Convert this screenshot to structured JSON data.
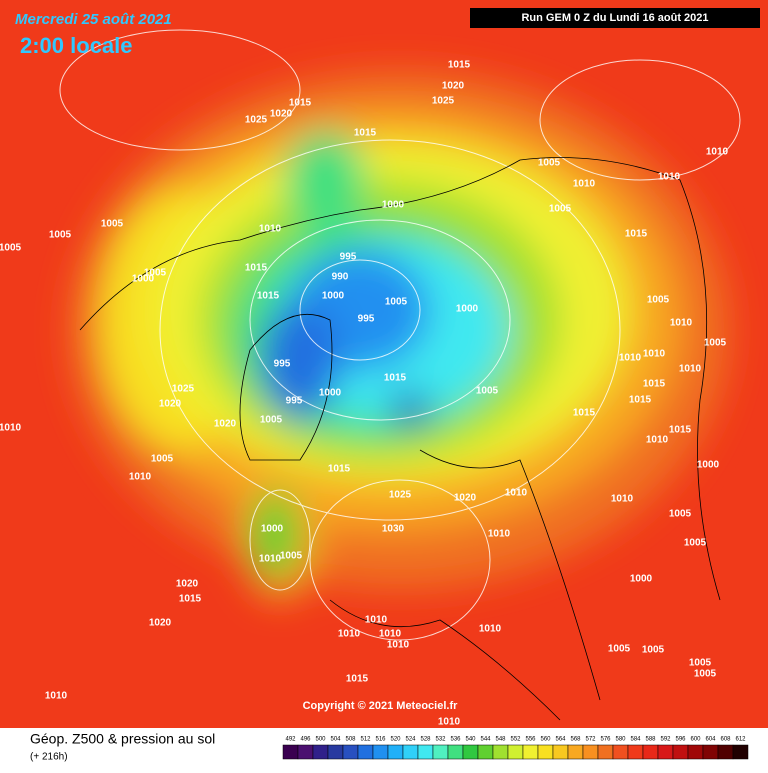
{
  "header": {
    "date": "Mercredi 25 août 2021",
    "time": "2:00 locale",
    "run": "Run GEM 0 Z du Lundi 16 août 2021"
  },
  "map": {
    "pressure_labels": [
      1015,
      1020,
      1025,
      1015,
      1020,
      1025,
      1015,
      1010,
      1005,
      1010,
      1010,
      1005,
      1000,
      1005,
      1005,
      1010,
      1015,
      995,
      990,
      1015,
      1005,
      1000,
      1000,
      1015,
      1005,
      1000,
      1005,
      1010,
      995,
      1005,
      1010,
      1010,
      995,
      1010,
      1015,
      1015,
      1005,
      1025,
      1020,
      995,
      1000,
      1015,
      1015,
      1005,
      1020,
      1010,
      1010,
      1015,
      1005,
      1000,
      1015,
      1010,
      1025,
      1020,
      1010,
      1010,
      1005,
      1000,
      1030,
      1010,
      1005,
      1010,
      1005,
      1000,
      1020,
      1015,
      1020,
      1010,
      1010,
      1010,
      1010,
      1010,
      1005,
      1005,
      1005,
      1005,
      1015,
      1010,
      1010,
      1005
    ],
    "copyright": "Copyright © 2021 Meteociel.fr"
  },
  "footer": {
    "title": "Géop. Z500 & pression au sol",
    "lead": "(+ 216h)",
    "scale": [
      492,
      496,
      500,
      504,
      508,
      512,
      516,
      520,
      524,
      528,
      532,
      536,
      540,
      544,
      548,
      552,
      556,
      560,
      564,
      568,
      572,
      576,
      580,
      584,
      588,
      592,
      596,
      600,
      604,
      608,
      612
    ],
    "colors": [
      "#3a0050",
      "#4b1070",
      "#30208a",
      "#283aa0",
      "#2850c0",
      "#2070e0",
      "#2090f0",
      "#20b0f8",
      "#30d0f8",
      "#40e8f0",
      "#50f0c0",
      "#40e080",
      "#30c840",
      "#60d030",
      "#a0e030",
      "#d0f030",
      "#f0f030",
      "#f8e020",
      "#f8c820",
      "#f8a820",
      "#f89020",
      "#f07020",
      "#f05020",
      "#f03a1a",
      "#e82818",
      "#d81818",
      "#c01010",
      "#a00808",
      "#800404",
      "#500000",
      "#200000"
    ]
  }
}
